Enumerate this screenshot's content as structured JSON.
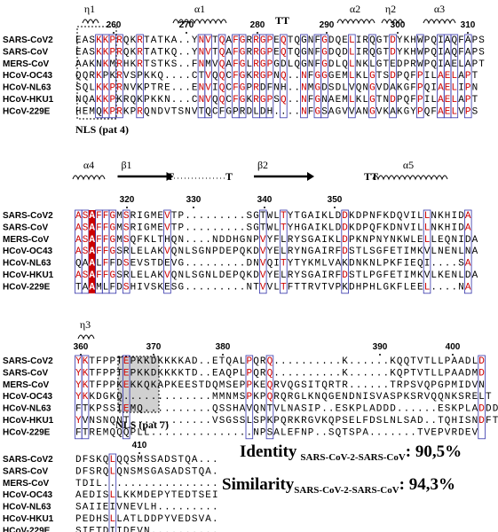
{
  "blocks": [
    {
      "structure": [
        "η1",
        "α1",
        "TT",
        "α2",
        "η2",
        "α3"
      ],
      "numbers": [
        "260",
        "270",
        "280",
        "290",
        "300",
        "310"
      ],
      "rows": [
        {
          "name": "SARS-CoV2",
          "seq": "EASKKPRQKRTATKA..YNVTQAFGRRGPEQTQGNFGDQELIRQGTDYKHWPQIAQFAPS"
        },
        {
          "name": "SARS-CoV",
          "seq": "EASKKPRQKRTATKQ..YNVTQAFGRRGPEQTQGNFGDQDLIRQGTDYKHWPQIAQFAPS"
        },
        {
          "name": "MERS-CoV",
          "seq": "AAKNKMRHKRTSTKS..FNMVQAFGLRGPGDLQGNFGDLQLNKLGTEDPRWPQIAELAPT"
        },
        {
          "name": "HCoV-OC43",
          "seq": "QQRKPKRVSPKKQ....CTVQQCFGKRGPNQ..NFGGGEMLKLGTSDPQFPILAELAPT"
        },
        {
          "name": "HCoV-NL63",
          "seq": "SQLKKPRNVKPTRE...ENVIQCFGPRDFNH..NMGDSDLVQNGVDAKGFPQIAELIPN"
        },
        {
          "name": "HCoV-HKU1",
          "seq": "NQAKKPKRQKPKKN...CNVQQCFGKRGPSQ..NFGNAEMLKLGTNDPQFPILAELAPT"
        },
        {
          "name": "HCoV-229E",
          "seq": "HEMQKPRKPRQNDVTSNVTQCFGPRDLDH....NFGSAGVVANGVKAKGYPQFAELVPS"
        }
      ]
    },
    {
      "structure": [
        "α4",
        "β1",
        "T",
        "T",
        "β2",
        "TT",
        "α5"
      ],
      "numbers": [
        "320",
        "330",
        "340",
        "350"
      ],
      "rows": [
        {
          "name": "SARS-CoV2",
          "seq": "ASAFFGMSRIGMEVTP.........SGTWLTYTGAIKLDDKDPNFKDQVILLNKHIDA"
        },
        {
          "name": "SARS-CoV",
          "seq": "ASAFFGMSRIGMEVTP.........SGTWLTYHGAIKLDDKDPQFKDNVILLNKHIDA"
        },
        {
          "name": "MERS-CoV",
          "seq": "ASAFFGMSQFKLTHQN....NDDHGNPVYFLRYSGAIKLDPKNPNYNKWLELLEQNIDA"
        },
        {
          "name": "HCoV-OC43",
          "seq": "ASAFFGSRLELAKVQNLSGNPDEPQKDVYELRYNGAIRFDSTLSGFETIMKVLNENLNA"
        },
        {
          "name": "HCoV-NL63",
          "seq": "QAALFFDSEVSTDEVG.........DNVQITYTYKMLVAKDNKNLPKFIEQI....SA"
        },
        {
          "name": "HCoV-HKU1",
          "seq": "ASAFFGSRLELAKVQNLSGNLDEPQKDVYELRYSGAIRFDSTLPGFETIMKVLKENLDA"
        },
        {
          "name": "HCoV-229E",
          "seq": "TAAMLFDSHIVSKESG.........NTVVLTFTTRVTVPKDHPHLGKFLEEL....NA"
        }
      ]
    },
    {
      "structure": [
        "η3"
      ],
      "numbers": [
        "360",
        "370",
        "380",
        "390",
        "400"
      ],
      "rows": [
        {
          "name": "SARS-CoV2",
          "seq": "YKTFPPTEPKKDKKKKAD..ETQALPQRQ..........K......KQQTVTLLPAADLD"
        },
        {
          "name": "SARS-CoV",
          "seq": "YKTFPPTEPKKDKKKKTD..EAQPLPQRQ..........K......KQPTVTLLPAADMD"
        },
        {
          "name": "MERS-CoV",
          "seq": "YKTFPPKEKKQKAPKEESTDQMSEPPKEQRVQGSITQRTR......TRPSVQPGPMIDVN"
        },
        {
          "name": "HCoV-OC43",
          "seq": "YKKDGKQ.............MMNMSPKPQRQRGLKNQGENDNISVASPKSRVQQNKSRELT"
        },
        {
          "name": "HCoV-NL63",
          "seq": "FTKPSSIEMQ..........QSSHAVQNTVLNASIP..ESKPLADDD......ESKPLADDD"
        },
        {
          "name": "HCoV-HKU1",
          "seq": "YVNSNQNT............VSGSSLSPKPQRKRGVKQPSELFDSLNLSAD..TQHISNDFT"
        },
        {
          "name": "HCoV-229E",
          "seq": "FTREMQQQPLL...............NPSALEFNP..SQTSPA.......TVEPVRDEV"
        }
      ]
    },
    {
      "structure": [],
      "numbers": [
        "410"
      ],
      "rows": [
        {
          "name": "SARS-CoV2",
          "seq": "DFSKQLQQSMSSADSTQA..."
        },
        {
          "name": "SARS-CoV",
          "seq": "DFSRQLQNSMSGASADSTQA."
        },
        {
          "name": "MERS-CoV",
          "seq": "TDIL................."
        },
        {
          "name": "HCoV-OC43",
          "seq": "AEDISLLKKMDEPYTEDTSEI"
        },
        {
          "name": "HCoV-NL63",
          "seq": "SAIIEIVNEVLH........."
        },
        {
          "name": "HCoV-HKU1",
          "seq": "PEDHSLLATLDDPYVEDSVA."
        },
        {
          "name": "HCoV-229E",
          "seq": "SIETDIIDEVN.........."
        }
      ]
    }
  ],
  "annotations": {
    "nls4": "NLS (pat 4)",
    "nls7": "NLS (pat 7)"
  },
  "identity": {
    "label": "Identity",
    "subscript": "SARS-CoV-2-SARS-CoV",
    "value": ": 90,5%"
  },
  "similarity": {
    "label": "Similarity",
    "subscript": "SARS-CoV-2-SARS-CoV",
    "value": ": 94,3%"
  }
}
